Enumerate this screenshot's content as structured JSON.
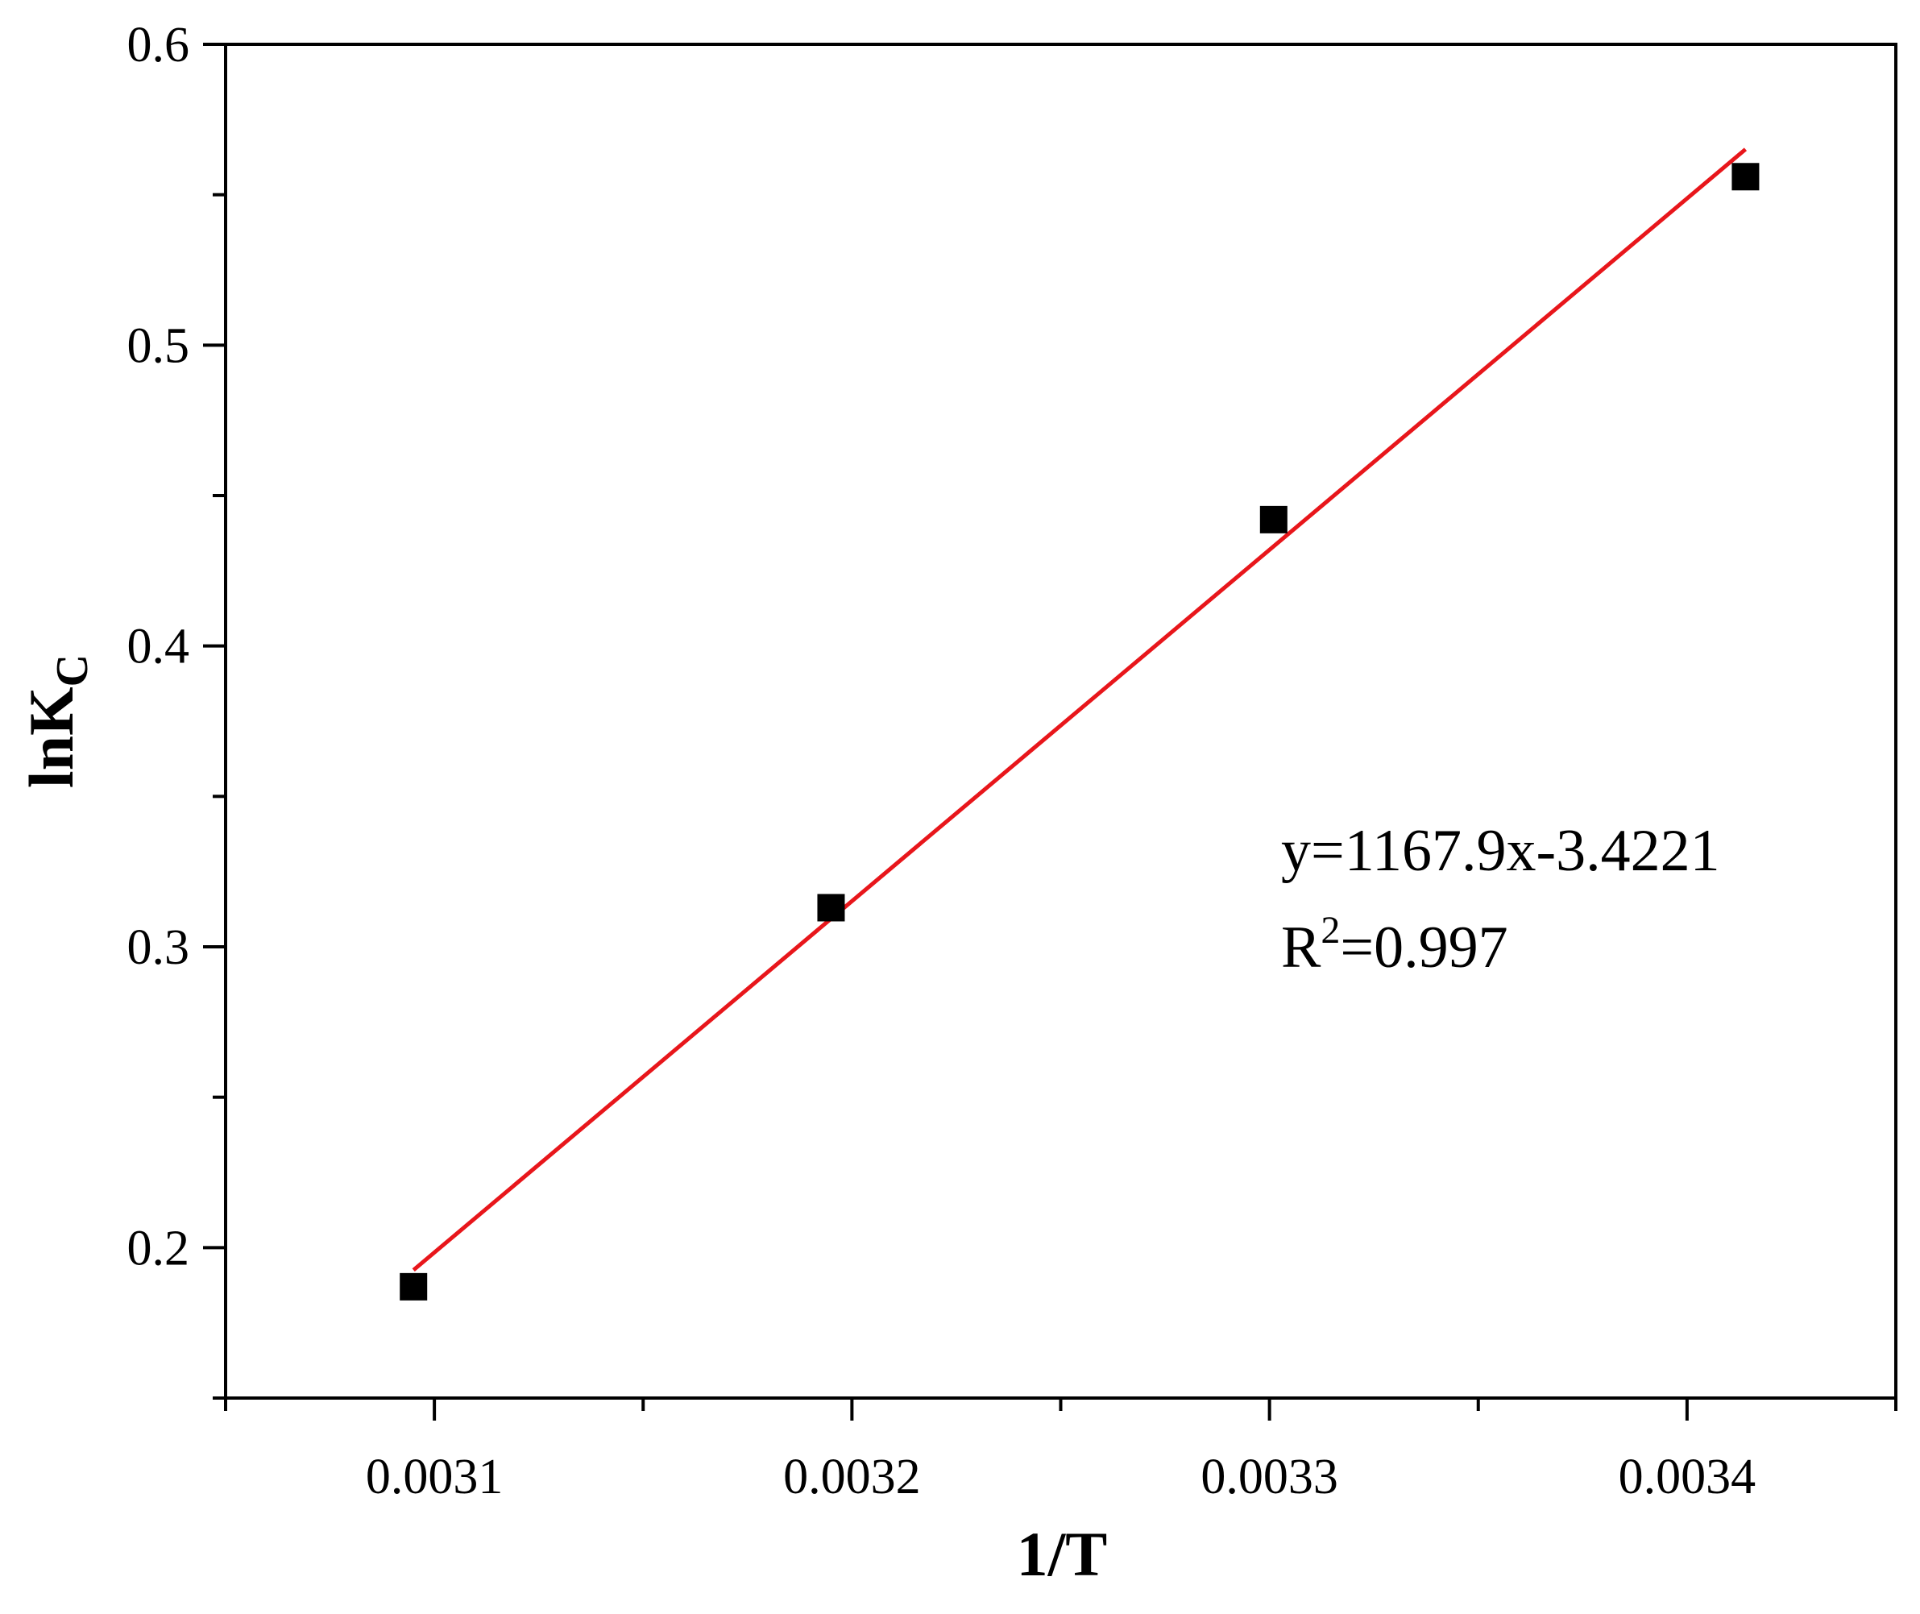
{
  "chart_data": {
    "type": "scatter",
    "xlabel": "1/T",
    "ylabel": {
      "main": "lnK",
      "subscript": "C"
    },
    "xlim": [
      0.00305,
      0.00345
    ],
    "ylim": [
      0.15,
      0.6
    ],
    "x_ticks": [
      0.0031,
      0.0032,
      0.0033,
      0.0034
    ],
    "x_tick_labels": [
      "0.0031",
      "0.0032",
      "0.0033",
      "0.0034"
    ],
    "y_ticks": [
      0.2,
      0.3,
      0.4,
      0.5,
      0.6
    ],
    "y_tick_labels": [
      "0.2",
      "0.3",
      "0.4",
      "0.5",
      "0.6"
    ],
    "grid": false,
    "series": [
      {
        "marker": "square",
        "color": "#000000",
        "x": [
          0.003095,
          0.003195,
          0.003301,
          0.003414
        ],
        "y": [
          0.187,
          0.313,
          0.442,
          0.556
        ]
      }
    ],
    "fit_line": {
      "color": "#e8161b",
      "slope": 1167.9,
      "intercept": -3.4221,
      "x_range": [
        0.003095,
        0.003414
      ]
    },
    "annotations": {
      "equation": "y=1167.9x-3.4221",
      "r2_prefix": "R",
      "r2_superscript": "2",
      "r2_value": "=0.997"
    }
  }
}
